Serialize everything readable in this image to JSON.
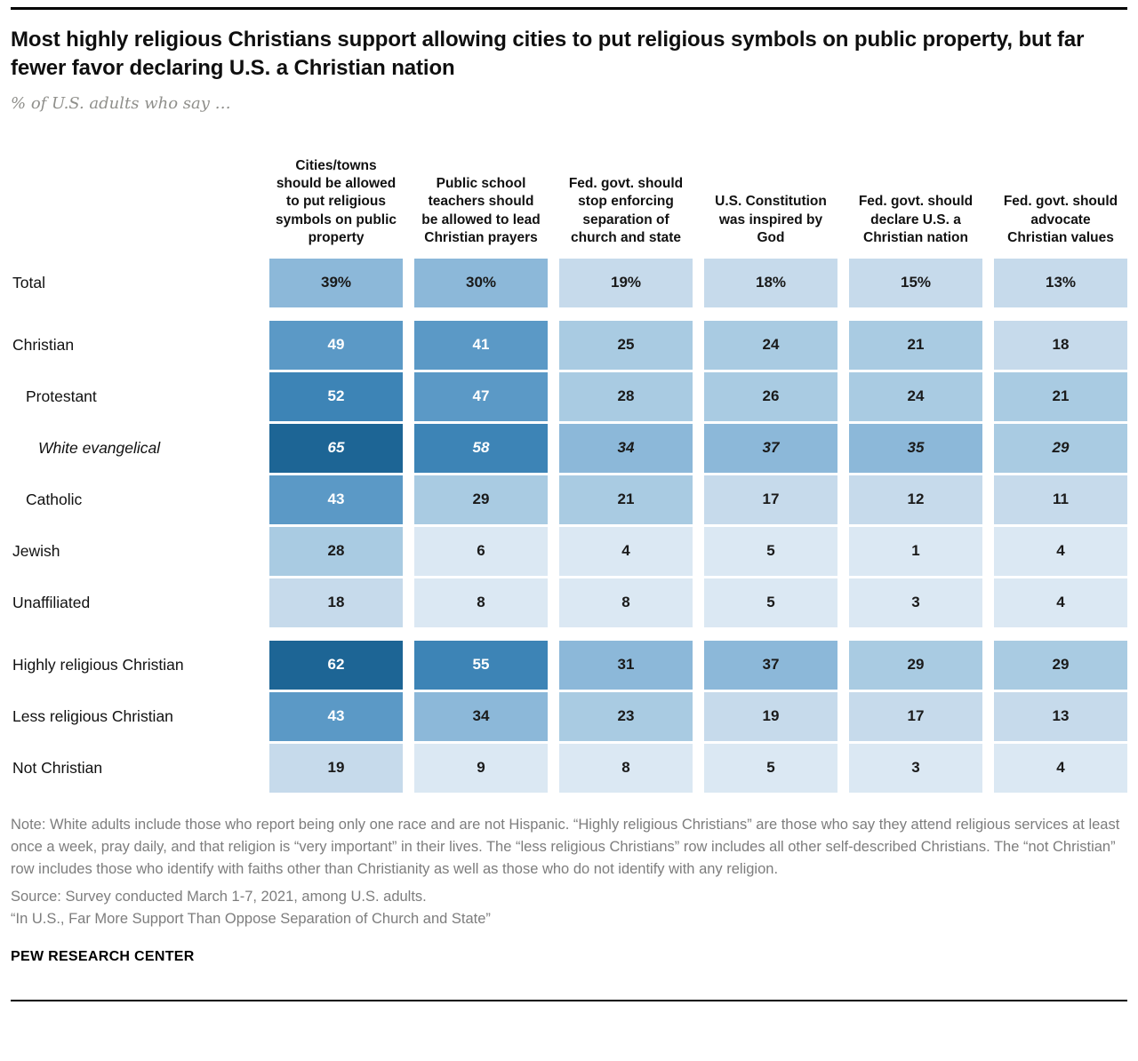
{
  "header": {
    "title": "Most highly religious Christians support allowing cities to put religious symbols on public property, but far fewer favor declaring U.S. a Christian nation",
    "subtitle": "% of U.S. adults who say …"
  },
  "chart_data": {
    "type": "heatmap",
    "unit": "% of U.S. adults",
    "columns": [
      "Cities/towns should be allowed to put religious symbols on public property",
      "Public school teachers should be allowed to lead Christian prayers",
      "Fed. govt. should stop enforcing separation of church and state",
      "U.S. Constitution was inspired by God",
      "Fed. govt. should declare U.S. a Christian nation",
      "Fed. govt. should advocate Christian values"
    ],
    "rows": [
      {
        "label": "Total",
        "values": [
          39,
          30,
          19,
          18,
          15,
          13
        ],
        "suffix": "%",
        "indent": 0,
        "italic": false,
        "gap_before": false
      },
      {
        "label": "Christian",
        "values": [
          49,
          41,
          25,
          24,
          21,
          18
        ],
        "suffix": "",
        "indent": 0,
        "italic": false,
        "gap_before": true
      },
      {
        "label": "Protestant",
        "values": [
          52,
          47,
          28,
          26,
          24,
          21
        ],
        "suffix": "",
        "indent": 1,
        "italic": false,
        "gap_before": false
      },
      {
        "label": "White evangelical",
        "values": [
          65,
          58,
          34,
          37,
          35,
          29
        ],
        "suffix": "",
        "indent": 2,
        "italic": true,
        "gap_before": false
      },
      {
        "label": "Catholic",
        "values": [
          43,
          29,
          21,
          17,
          12,
          11
        ],
        "suffix": "",
        "indent": 1,
        "italic": false,
        "gap_before": false
      },
      {
        "label": "Jewish",
        "values": [
          28,
          6,
          4,
          5,
          1,
          4
        ],
        "suffix": "",
        "indent": 0,
        "italic": false,
        "gap_before": false
      },
      {
        "label": "Unaffiliated",
        "values": [
          18,
          8,
          8,
          5,
          3,
          4
        ],
        "suffix": "",
        "indent": 0,
        "italic": false,
        "gap_before": false
      },
      {
        "label": "Highly religious Christian",
        "values": [
          62,
          55,
          31,
          37,
          29,
          29
        ],
        "suffix": "",
        "indent": 0,
        "italic": false,
        "gap_before": true
      },
      {
        "label": "Less religious Christian",
        "values": [
          43,
          34,
          23,
          19,
          17,
          13
        ],
        "suffix": "",
        "indent": 0,
        "italic": false,
        "gap_before": false
      },
      {
        "label": "Not Christian",
        "values": [
          19,
          9,
          8,
          5,
          3,
          4
        ],
        "suffix": "",
        "indent": 0,
        "italic": false,
        "gap_before": false
      }
    ],
    "color_bins": [
      {
        "min": 60,
        "bg": "#1d6595",
        "fg": "#ffffff"
      },
      {
        "min": 50,
        "bg": "#3d84b6",
        "fg": "#ffffff"
      },
      {
        "min": 40,
        "bg": "#5b99c6",
        "fg": "#ffffff"
      },
      {
        "min": 30,
        "bg": "#8cb8d9",
        "fg": "#1a1a1a"
      },
      {
        "min": 20,
        "bg": "#a9cbe2",
        "fg": "#1a1a1a"
      },
      {
        "min": 10,
        "bg": "#c6daeb",
        "fg": "#1a1a1a"
      },
      {
        "min": 0,
        "bg": "#dbe8f3",
        "fg": "#1a1a1a"
      }
    ]
  },
  "footer": {
    "note": "Note: White adults include those who report being only one race and are not Hispanic. “Highly religious Christians” are those who say they attend religious services at least once a week, pray daily, and that religion is “very important” in their lives. The “less religious Christians” row includes all other self-described Christians. The “not Christian” row includes those who identify with faiths other than Christianity as well as those who do not identify with any religion.",
    "source": "Source: Survey conducted March 1-7, 2021, among U.S. adults.",
    "report": "“In U.S., Far More Support Than Oppose Separation of Church and State”",
    "brand": "PEW RESEARCH CENTER"
  }
}
